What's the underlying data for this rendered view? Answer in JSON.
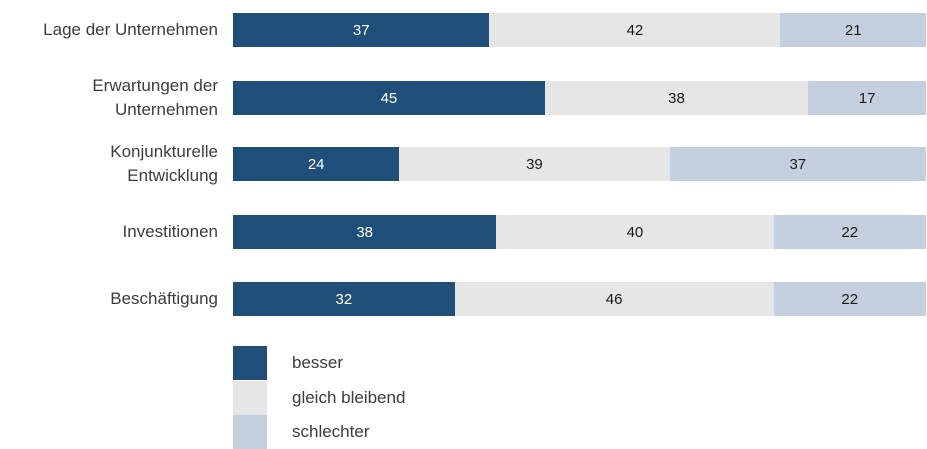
{
  "chart_data": {
    "type": "bar",
    "orientation": "horizontal",
    "stacked": true,
    "categories": [
      "Lage der Unternehmen",
      "Erwartungen der\nUnternehmen",
      "Konjunkturelle\nEntwicklung",
      "Investitionen",
      "Beschäftigung"
    ],
    "series": [
      {
        "name": "besser",
        "color": "#1f4e79",
        "values": [
          37,
          45,
          24,
          38,
          32
        ]
      },
      {
        "name": "gleich bleibend",
        "color": "#e6e6e6",
        "values": [
          42,
          38,
          39,
          40,
          46
        ]
      },
      {
        "name": "schlechter",
        "color": "#c5d0de",
        "values": [
          21,
          17,
          37,
          22,
          22
        ]
      }
    ],
    "xlim": [
      0,
      100
    ],
    "grid": false,
    "legend_position": "bottom-left",
    "label_colors": {
      "besser": "#ffffff",
      "gleich bleibend": "#1a1a1a",
      "schlechter": "#1a1a1a"
    }
  }
}
